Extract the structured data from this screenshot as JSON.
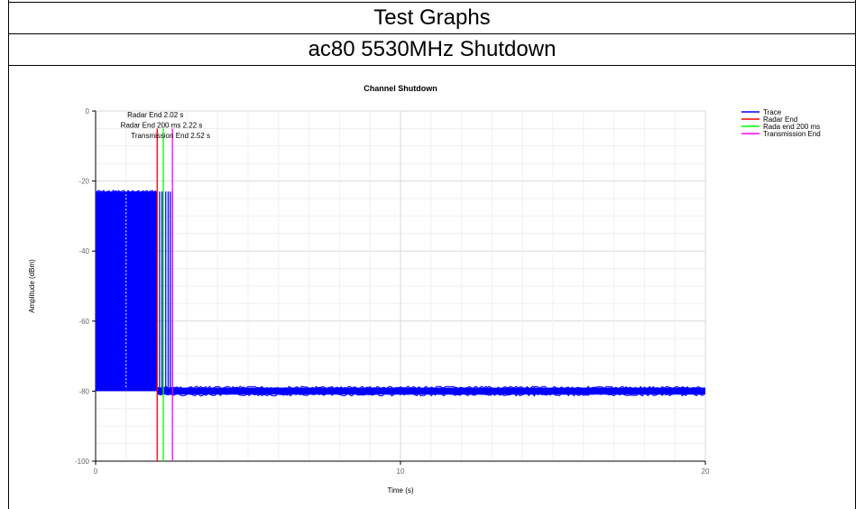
{
  "header": {
    "title": "Test Graphs",
    "subtitle": "ac80 5530MHz Shutdown"
  },
  "chart_data": {
    "type": "line",
    "title": "Channel Shutdown",
    "xlabel": "Time (s)",
    "ylabel": "Amplitude (dBm)",
    "xlim": [
      0,
      20
    ],
    "ylim": [
      -100,
      0
    ],
    "x_ticks": [
      "0",
      "10",
      "20"
    ],
    "y_ticks": [
      "0",
      "-20",
      "-40",
      "-60",
      "-80",
      "-100"
    ],
    "grid": true,
    "legend_position": "top-right",
    "series": [
      {
        "name": "Trace",
        "color": "#0000ff",
        "segments": [
          {
            "x_start": 0.0,
            "x_end": 2.02,
            "high": -23,
            "low": -80
          },
          {
            "x_start": 2.02,
            "x_end": 20.0,
            "high": -79,
            "low": -81
          }
        ],
        "bursts_after_end": [
          2.1,
          2.18,
          2.3,
          2.38,
          2.45,
          2.52
        ]
      },
      {
        "name": "Radar End",
        "color": "#ff0000",
        "x": 2.02
      },
      {
        "name": "Rada end 200 ms",
        "color": "#00ff00",
        "x": 2.22
      },
      {
        "name": "Transmission End",
        "color": "#ff00ff",
        "x": 2.52
      }
    ],
    "annotations": [
      {
        "text": "Radar End 2.02 s",
        "x": 2.02,
        "y": -1
      },
      {
        "text": "Radar End 200 ms 2.22 s",
        "x": 2.22,
        "y": -4
      },
      {
        "text": "Transmission End 2.52 s",
        "x": 2.52,
        "y": -7
      }
    ]
  }
}
